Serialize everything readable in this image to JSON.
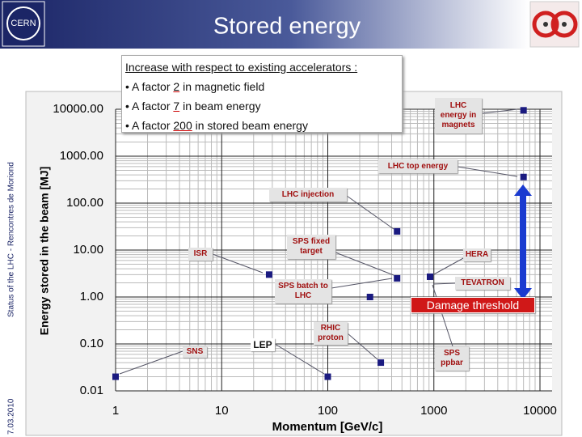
{
  "header": {
    "title": "Stored energy",
    "logo": "CERN"
  },
  "sidebar": {
    "date": "7.03.2010",
    "event": "Status of the LHC - Rencontres de Moriond"
  },
  "callout": {
    "heading": "Increase with respect to existing accelerators :",
    "bullets": [
      {
        "lead": "A factor",
        "factor": "2",
        "rest": "in magnetic field"
      },
      {
        "lead": "A factor",
        "factor": "7",
        "rest": "in beam energy"
      },
      {
        "lead": "A factor",
        "factor": "200",
        "rest": "in stored beam energy"
      }
    ]
  },
  "chart_data": {
    "type": "scatter",
    "xlabel": "Momentum [GeV/c]",
    "ylabel": "Energy stored in the beam [MJ]",
    "x": [
      1,
      28,
      100,
      250,
      316,
      450,
      450,
      920,
      7000,
      7000
    ],
    "series": [
      {
        "color": "#1a1a80",
        "values": [
          0.02,
          3,
          0.02,
          1,
          0.04,
          25,
          2.5,
          2.7,
          360,
          9500
        ]
      }
    ],
    "xlim": [
      1,
      10000
    ],
    "ylim": [
      0.01,
      10000
    ],
    "xticks": [
      1,
      10,
      100,
      1000,
      10000
    ],
    "yticks": [
      {
        "value": 10000,
        "label": "10000.00"
      },
      {
        "value": 1000,
        "label": "1000.00"
      },
      {
        "value": 100,
        "label": "100.00"
      },
      {
        "value": 10,
        "label": "10.00"
      },
      {
        "value": 1,
        "label": "1.00"
      },
      {
        "value": 0.1,
        "label": "0.10"
      },
      {
        "value": 0.01,
        "label": "0.01"
      }
    ],
    "xscale": "log",
    "yscale": "log",
    "grid": true,
    "annotations": [
      "LHC energy in magnets",
      "LHC top energy",
      "LHC injection",
      "SPS fixed target",
      "ISR",
      "HERA",
      "SPS batch to LHC",
      "TEVATRON",
      "RHIC proton",
      "LEP",
      "SNS",
      "SPS ppbar",
      "Damage threshold"
    ]
  }
}
